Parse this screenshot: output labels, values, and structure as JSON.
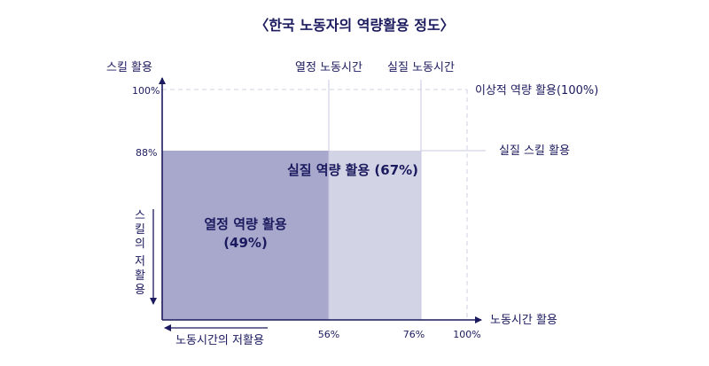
{
  "title": "〈한국 노동자의 역량활용 정도〉",
  "y_axis_label": "스킬 활용",
  "x_axis_label": "노동시간 활용",
  "y_ticks": {
    "t100": "100%",
    "t88": "88%"
  },
  "x_ticks": {
    "t56": "56%",
    "t76": "76%",
    "t100": "100%"
  },
  "top_labels": {
    "desired_hours": "열정 노동시간",
    "actual_hours": "실질 노동시간"
  },
  "right_labels": {
    "ideal": "이상적 역량 활용(100%)",
    "actual_skill": "실질 스킬 활용"
  },
  "regions": {
    "actual": "실질 역량 활용 (67%)",
    "desired_line1": "열정 역량 활용",
    "desired_line2": "(49%)"
  },
  "side_labels": {
    "skill_underuse": [
      "스",
      "킬",
      "의",
      "저",
      "활",
      "용"
    ],
    "hours_underuse": "노동시간의 저활용"
  },
  "colors": {
    "text": "#1b1a5e",
    "desired_fill": "#a8a8cc",
    "actual_fill": "#d3d3e6",
    "guide": "#c8c8e0",
    "dash": "#cfcfdf"
  },
  "chart_data": {
    "type": "area",
    "x_axis": "노동시간 활용",
    "y_axis": "스킬 활용",
    "xlim": [
      0,
      100
    ],
    "ylim": [
      0,
      100
    ],
    "rectangles": [
      {
        "name": "열정 역량 활용",
        "x": 56,
        "y": 88,
        "value": 49
      },
      {
        "name": "실질 역량 활용",
        "x": 76,
        "y": 88,
        "value": 67
      },
      {
        "name": "이상적 역량 활용",
        "x": 100,
        "y": 100,
        "value": 100
      }
    ]
  }
}
